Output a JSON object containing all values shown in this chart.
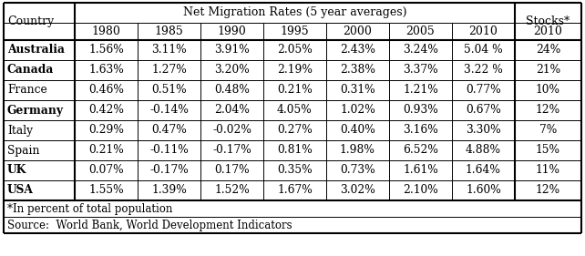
{
  "countries": [
    "Australia",
    "Canada",
    "France",
    "Germany",
    "Italy",
    "Spain",
    "UK",
    "USA"
  ],
  "country_bold": [
    true,
    true,
    false,
    true,
    false,
    false,
    true,
    true
  ],
  "data": [
    [
      "1.56%",
      "3.11%",
      "3.91%",
      "2.05%",
      "2.43%",
      "3.24%",
      "5.04 %",
      "24%"
    ],
    [
      "1.63%",
      "1.27%",
      "3.20%",
      "2.19%",
      "2.38%",
      "3.37%",
      "3.22 %",
      "21%"
    ],
    [
      "0.46%",
      "0.51%",
      "0.48%",
      "0.21%",
      "0.31%",
      "1.21%",
      "0.77%",
      "10%"
    ],
    [
      "0.42%",
      "-0.14%",
      "2.04%",
      "4.05%",
      "1.02%",
      "0.93%",
      "0.67%",
      "12%"
    ],
    [
      "0.29%",
      "0.47%",
      "-0.02%",
      "0.27%",
      "0.40%",
      "3.16%",
      "3.30%",
      "7%"
    ],
    [
      "0.21%",
      "-0.11%",
      "-0.17%",
      "0.81%",
      "1.98%",
      "6.52%",
      "4.88%",
      "15%"
    ],
    [
      "0.07%",
      "-0.17%",
      "0.17%",
      "0.35%",
      "0.73%",
      "1.61%",
      "1.64%",
      "11%"
    ],
    [
      "1.55%",
      "1.39%",
      "1.52%",
      "1.67%",
      "3.02%",
      "2.10%",
      "1.60%",
      "12%"
    ]
  ],
  "years": [
    "1980",
    "1985",
    "1990",
    "1995",
    "2000",
    "2005",
    "2010"
  ],
  "footnote1": "*In percent of total population",
  "footnote2": "Source:  World Bank, World Development Indicators",
  "bg_color": "#ffffff",
  "header_main": "Net Migration Rates (5 year averages)",
  "col_country": "Country",
  "col_stocks_header": "Stocks*",
  "col_stocks_year": "2010"
}
